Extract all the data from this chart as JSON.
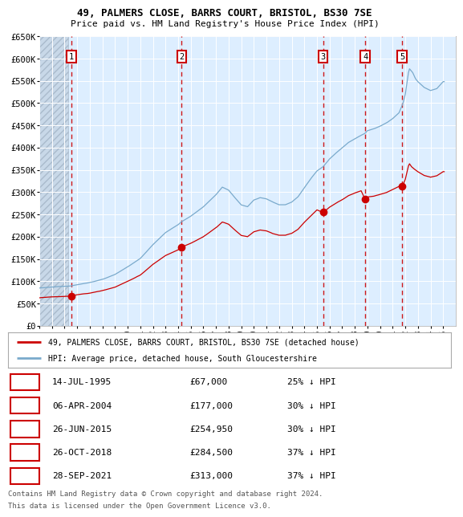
{
  "title1": "49, PALMERS CLOSE, BARRS COURT, BRISTOL, BS30 7SE",
  "title2": "Price paid vs. HM Land Registry's House Price Index (HPI)",
  "ylim": [
    0,
    650000
  ],
  "yticks": [
    0,
    50000,
    100000,
    150000,
    200000,
    250000,
    300000,
    350000,
    400000,
    450000,
    500000,
    550000,
    600000,
    650000
  ],
  "ytick_labels": [
    "£0",
    "£50K",
    "£100K",
    "£150K",
    "£200K",
    "£250K",
    "£300K",
    "£350K",
    "£400K",
    "£450K",
    "£500K",
    "£550K",
    "£600K",
    "£650K"
  ],
  "xtick_years": [
    1993,
    1994,
    1995,
    1996,
    1997,
    1998,
    1999,
    2000,
    2001,
    2002,
    2003,
    2004,
    2005,
    2006,
    2007,
    2008,
    2009,
    2010,
    2011,
    2012,
    2013,
    2014,
    2015,
    2016,
    2017,
    2018,
    2019,
    2020,
    2021,
    2022,
    2023,
    2024,
    2025
  ],
  "sale_dates_num": [
    1995.53,
    2004.27,
    2015.49,
    2018.82,
    2021.75
  ],
  "sale_prices": [
    67000,
    177000,
    254950,
    284500,
    313000
  ],
  "sale_labels": [
    "1",
    "2",
    "3",
    "4",
    "5"
  ],
  "sale_table": [
    {
      "num": "1",
      "date": "14-JUL-1995",
      "price": "£67,000",
      "hpi": "25% ↓ HPI"
    },
    {
      "num": "2",
      "date": "06-APR-2004",
      "price": "£177,000",
      "hpi": "30% ↓ HPI"
    },
    {
      "num": "3",
      "date": "26-JUN-2015",
      "price": "£254,950",
      "hpi": "30% ↓ HPI"
    },
    {
      "num": "4",
      "date": "26-OCT-2018",
      "price": "£284,500",
      "hpi": "37% ↓ HPI"
    },
    {
      "num": "5",
      "date": "28-SEP-2021",
      "price": "£313,000",
      "hpi": "37% ↓ HPI"
    }
  ],
  "legend_line1": "49, PALMERS CLOSE, BARRS COURT, BRISTOL, BS30 7SE (detached house)",
  "legend_line2": "HPI: Average price, detached house, South Gloucestershire",
  "footer1": "Contains HM Land Registry data © Crown copyright and database right 2024.",
  "footer2": "This data is licensed under the Open Government Licence v3.0.",
  "red_color": "#cc0000",
  "blue_color": "#7aaacc",
  "bg_color": "#ddeeff",
  "hatch_color": "#bbccdd"
}
